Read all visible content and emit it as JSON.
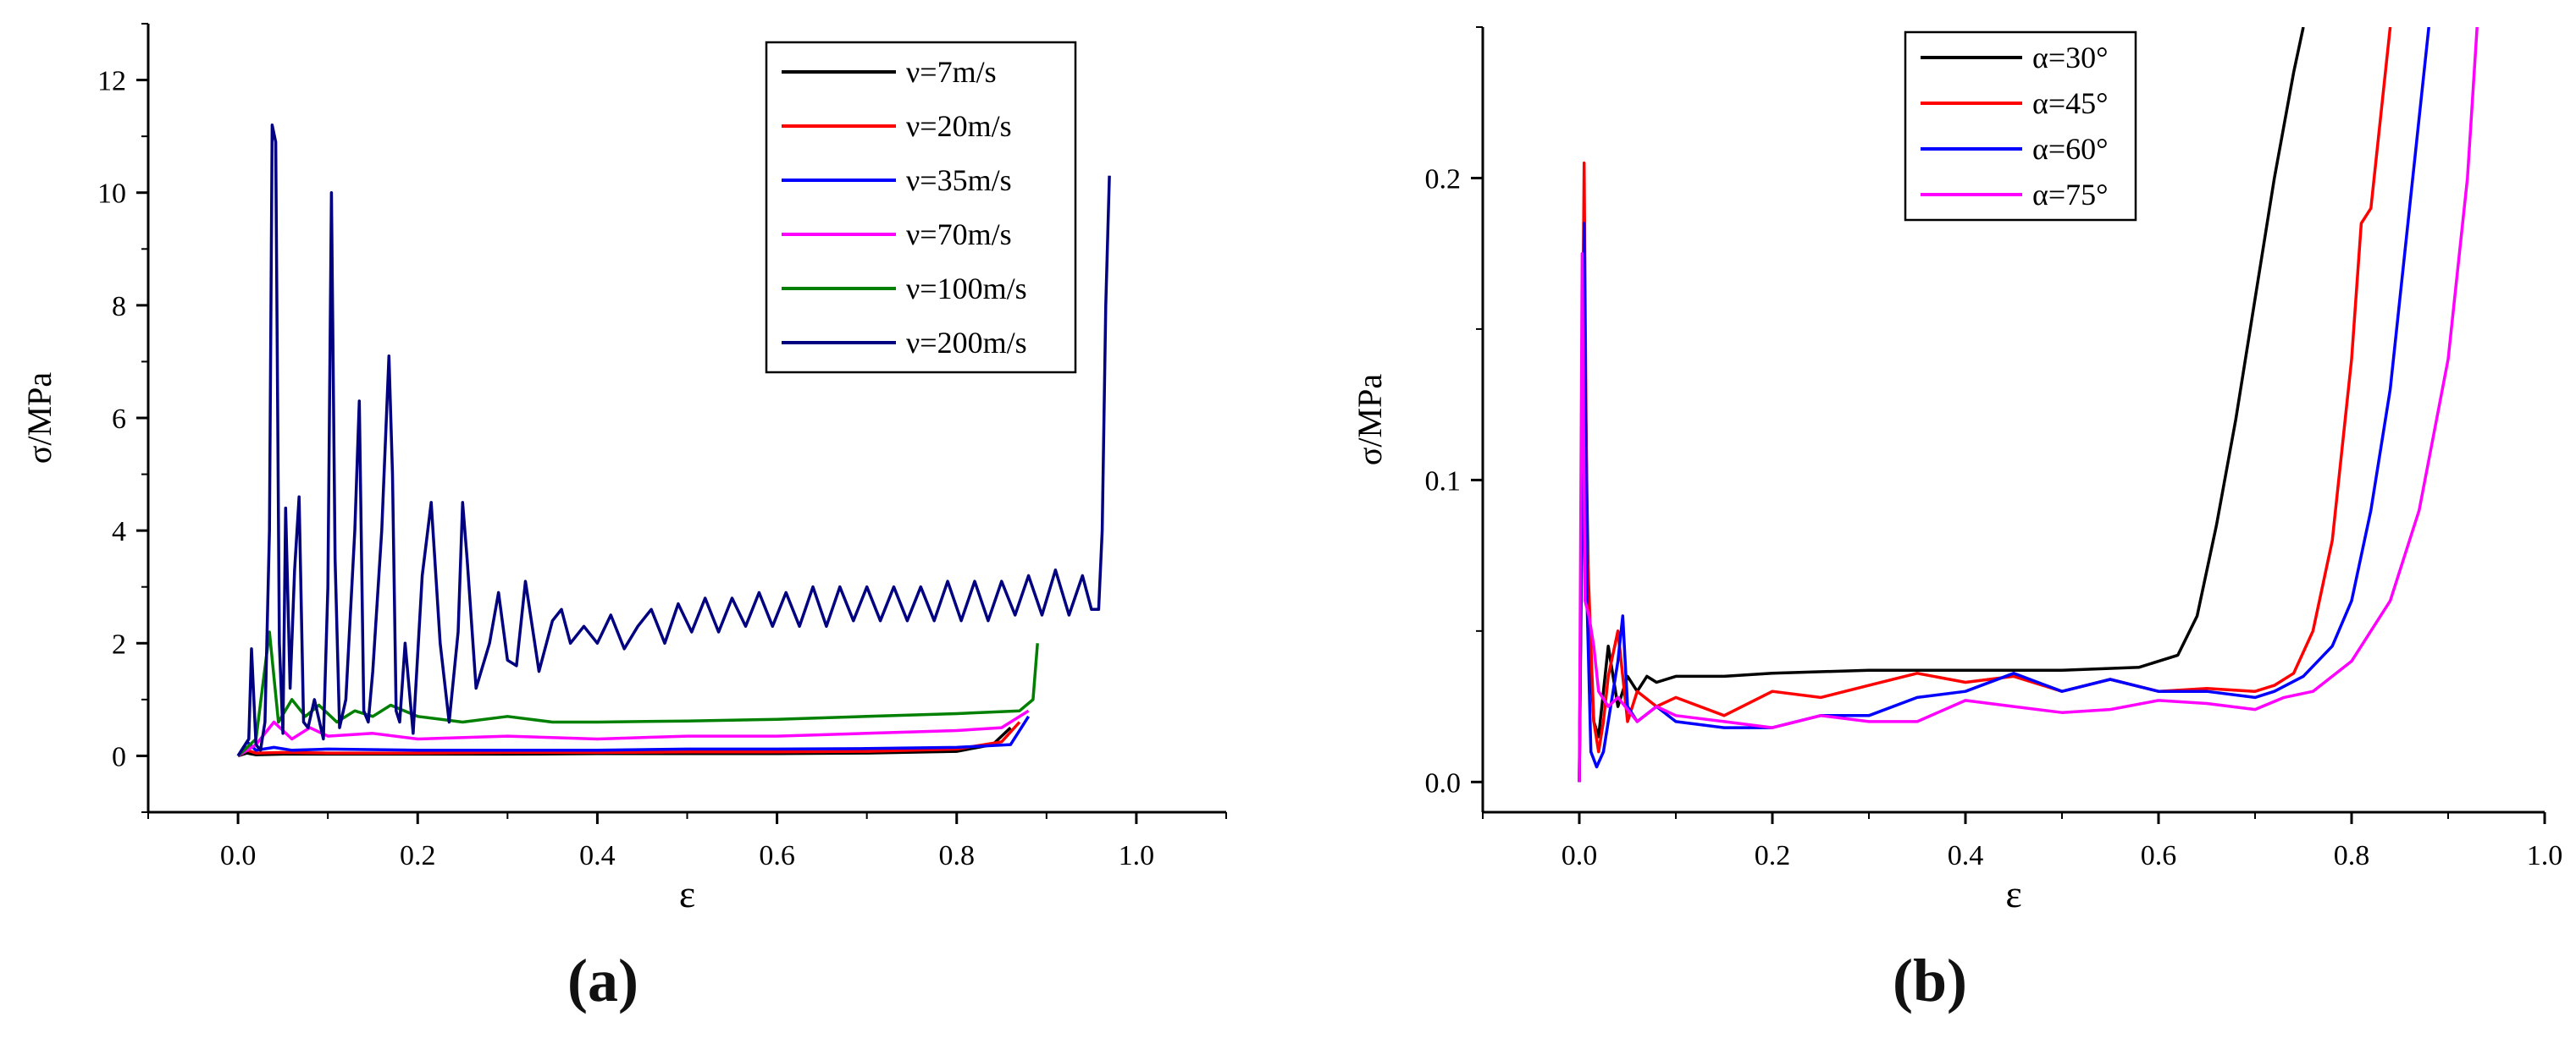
{
  "chart_data": [
    {
      "type": "line",
      "panel_label": "(a)",
      "xlabel": "ε",
      "ylabel": "σ/MPa",
      "xlim": [
        -0.1,
        1.1
      ],
      "ylim": [
        -1,
        13
      ],
      "xticks": [
        0.0,
        0.2,
        0.4,
        0.6,
        0.8,
        1.0
      ],
      "xtick_labels": [
        "0.0",
        "0.2",
        "0.4",
        "0.6",
        "0.8",
        "1.0"
      ],
      "yticks": [
        0,
        2,
        4,
        6,
        8,
        10,
        12
      ],
      "ytick_labels": [
        "0",
        "2",
        "4",
        "6",
        "8",
        "10",
        "12"
      ],
      "legend_position": "top-right",
      "series": [
        {
          "name": "ν=7m/s",
          "color": "#000000",
          "x": [
            0.0,
            0.01,
            0.02,
            0.05,
            0.1,
            0.2,
            0.3,
            0.4,
            0.5,
            0.6,
            0.7,
            0.8,
            0.84,
            0.86
          ],
          "y": [
            0.0,
            0.05,
            0.02,
            0.03,
            0.03,
            0.03,
            0.03,
            0.04,
            0.04,
            0.04,
            0.05,
            0.08,
            0.2,
            0.5
          ]
        },
        {
          "name": "ν=20m/s",
          "color": "#ff0000",
          "x": [
            0.0,
            0.01,
            0.02,
            0.05,
            0.1,
            0.2,
            0.3,
            0.4,
            0.5,
            0.6,
            0.7,
            0.8,
            0.85,
            0.87
          ],
          "y": [
            0.0,
            0.1,
            0.05,
            0.06,
            0.05,
            0.05,
            0.06,
            0.06,
            0.07,
            0.07,
            0.08,
            0.12,
            0.25,
            0.6
          ]
        },
        {
          "name": "ν=35m/s",
          "color": "#0000ff",
          "x": [
            0.0,
            0.01,
            0.02,
            0.04,
            0.06,
            0.1,
            0.2,
            0.3,
            0.4,
            0.5,
            0.6,
            0.7,
            0.8,
            0.86,
            0.88
          ],
          "y": [
            0.0,
            0.25,
            0.1,
            0.15,
            0.1,
            0.12,
            0.1,
            0.1,
            0.1,
            0.12,
            0.12,
            0.13,
            0.15,
            0.2,
            0.7
          ]
        },
        {
          "name": "ν=70m/s",
          "color": "#ff00ff",
          "x": [
            0.0,
            0.02,
            0.04,
            0.06,
            0.08,
            0.1,
            0.15,
            0.2,
            0.3,
            0.4,
            0.5,
            0.6,
            0.7,
            0.8,
            0.85,
            0.88
          ],
          "y": [
            0.0,
            0.2,
            0.6,
            0.3,
            0.5,
            0.35,
            0.4,
            0.3,
            0.35,
            0.3,
            0.35,
            0.35,
            0.4,
            0.45,
            0.5,
            0.8
          ]
        },
        {
          "name": "ν=100m/s",
          "color": "#008000",
          "x": [
            0.0,
            0.02,
            0.035,
            0.045,
            0.06,
            0.075,
            0.09,
            0.11,
            0.13,
            0.15,
            0.17,
            0.2,
            0.25,
            0.3,
            0.35,
            0.4,
            0.5,
            0.6,
            0.7,
            0.8,
            0.87,
            0.885,
            0.89
          ],
          "y": [
            0.0,
            0.3,
            2.2,
            0.6,
            1.0,
            0.7,
            0.9,
            0.6,
            0.8,
            0.7,
            0.9,
            0.7,
            0.6,
            0.7,
            0.6,
            0.6,
            0.62,
            0.65,
            0.7,
            0.75,
            0.8,
            1.0,
            2.0
          ]
        },
        {
          "name": "ν=200m/s",
          "color": "#000080",
          "x": [
            0.0,
            0.012,
            0.015,
            0.02,
            0.025,
            0.03,
            0.035,
            0.038,
            0.042,
            0.046,
            0.05,
            0.053,
            0.058,
            0.063,
            0.068,
            0.073,
            0.078,
            0.085,
            0.095,
            0.1,
            0.104,
            0.108,
            0.113,
            0.12,
            0.13,
            0.135,
            0.14,
            0.145,
            0.15,
            0.16,
            0.168,
            0.172,
            0.176,
            0.18,
            0.186,
            0.195,
            0.205,
            0.215,
            0.225,
            0.235,
            0.245,
            0.25,
            0.255,
            0.265,
            0.28,
            0.29,
            0.3,
            0.31,
            0.32,
            0.335,
            0.35,
            0.36,
            0.37,
            0.385,
            0.4,
            0.415,
            0.43,
            0.445,
            0.46,
            0.475,
            0.49,
            0.505,
            0.52,
            0.535,
            0.55,
            0.565,
            0.58,
            0.595,
            0.61,
            0.625,
            0.64,
            0.655,
            0.67,
            0.685,
            0.7,
            0.715,
            0.73,
            0.745,
            0.76,
            0.775,
            0.79,
            0.805,
            0.82,
            0.835,
            0.85,
            0.865,
            0.88,
            0.895,
            0.91,
            0.925,
            0.94,
            0.95,
            0.958,
            0.962,
            0.966,
            0.97
          ],
          "y": [
            0.0,
            0.3,
            1.9,
            0.2,
            0.1,
            0.6,
            4.0,
            11.2,
            10.9,
            2.0,
            0.4,
            4.4,
            1.2,
            3.3,
            4.6,
            0.6,
            0.5,
            1.0,
            0.3,
            3.0,
            10.0,
            3.5,
            0.5,
            1.0,
            4.0,
            6.3,
            0.8,
            0.6,
            1.5,
            4.0,
            7.1,
            5.0,
            0.8,
            0.6,
            2.0,
            0.4,
            3.2,
            4.5,
            2.0,
            0.6,
            2.2,
            4.5,
            3.5,
            1.2,
            2.0,
            2.9,
            1.7,
            1.6,
            3.1,
            1.5,
            2.4,
            2.6,
            2.0,
            2.3,
            2.0,
            2.5,
            1.9,
            2.3,
            2.6,
            2.0,
            2.7,
            2.2,
            2.8,
            2.2,
            2.8,
            2.3,
            2.9,
            2.3,
            2.9,
            2.3,
            3.0,
            2.3,
            3.0,
            2.4,
            3.0,
            2.4,
            3.0,
            2.4,
            3.0,
            2.4,
            3.1,
            2.4,
            3.1,
            2.4,
            3.1,
            2.5,
            3.2,
            2.5,
            3.3,
            2.5,
            3.2,
            2.6,
            2.6,
            4.0,
            8.0,
            10.3
          ]
        }
      ]
    },
    {
      "type": "line",
      "panel_label": "(b)",
      "xlabel": "ε",
      "ylabel": "σ/MPa",
      "xlim": [
        -0.1,
        1.0
      ],
      "ylim": [
        -0.01,
        0.25
      ],
      "xticks": [
        0.0,
        0.2,
        0.4,
        0.6,
        0.8,
        1.0
      ],
      "xtick_labels": [
        "0.0",
        "0.2",
        "0.4",
        "0.6",
        "0.8",
        "1.0"
      ],
      "yticks": [
        0.0,
        0.1,
        0.2
      ],
      "ytick_labels": [
        "0.0",
        "0.1",
        "0.2"
      ],
      "legend_position": "top-left",
      "series": [
        {
          "name": "α=30°",
          "color": "#000000",
          "x": [
            0.0,
            0.005,
            0.01,
            0.015,
            0.02,
            0.025,
            0.03,
            0.035,
            0.04,
            0.05,
            0.06,
            0.07,
            0.08,
            0.1,
            0.15,
            0.2,
            0.3,
            0.4,
            0.5,
            0.58,
            0.62,
            0.64,
            0.66,
            0.68,
            0.7,
            0.72,
            0.74,
            0.75
          ],
          "y": [
            0.0,
            0.16,
            0.05,
            0.02,
            0.015,
            0.03,
            0.045,
            0.035,
            0.025,
            0.035,
            0.03,
            0.035,
            0.033,
            0.035,
            0.035,
            0.036,
            0.037,
            0.037,
            0.037,
            0.038,
            0.042,
            0.055,
            0.085,
            0.12,
            0.16,
            0.2,
            0.235,
            0.25
          ]
        },
        {
          "name": "α=45°",
          "color": "#ff0000",
          "x": [
            0.0,
            0.005,
            0.008,
            0.015,
            0.02,
            0.025,
            0.03,
            0.04,
            0.05,
            0.06,
            0.08,
            0.1,
            0.15,
            0.2,
            0.25,
            0.3,
            0.35,
            0.4,
            0.45,
            0.5,
            0.55,
            0.6,
            0.65,
            0.7,
            0.72,
            0.74,
            0.76,
            0.78,
            0.8,
            0.81,
            0.82,
            0.83,
            0.84
          ],
          "y": [
            0.0,
            0.205,
            0.08,
            0.02,
            0.01,
            0.02,
            0.035,
            0.05,
            0.02,
            0.03,
            0.025,
            0.028,
            0.022,
            0.03,
            0.028,
            0.032,
            0.036,
            0.033,
            0.035,
            0.03,
            0.034,
            0.03,
            0.031,
            0.03,
            0.032,
            0.036,
            0.05,
            0.08,
            0.14,
            0.185,
            0.19,
            0.22,
            0.25
          ]
        },
        {
          "name": "α=60°",
          "color": "#0000ff",
          "x": [
            0.0,
            0.005,
            0.008,
            0.012,
            0.018,
            0.025,
            0.03,
            0.04,
            0.045,
            0.05,
            0.06,
            0.08,
            0.1,
            0.15,
            0.2,
            0.25,
            0.3,
            0.35,
            0.4,
            0.45,
            0.5,
            0.55,
            0.6,
            0.65,
            0.7,
            0.72,
            0.75,
            0.78,
            0.8,
            0.82,
            0.84,
            0.86,
            0.88
          ],
          "y": [
            0.0,
            0.185,
            0.06,
            0.01,
            0.005,
            0.01,
            0.02,
            0.04,
            0.055,
            0.025,
            0.02,
            0.025,
            0.02,
            0.018,
            0.018,
            0.022,
            0.022,
            0.028,
            0.03,
            0.036,
            0.03,
            0.034,
            0.03,
            0.03,
            0.028,
            0.03,
            0.035,
            0.045,
            0.06,
            0.09,
            0.13,
            0.19,
            0.25
          ]
        },
        {
          "name": "α=75°",
          "color": "#ff00ff",
          "x": [
            0.0,
            0.003,
            0.006,
            0.01,
            0.015,
            0.02,
            0.03,
            0.04,
            0.06,
            0.08,
            0.1,
            0.15,
            0.2,
            0.25,
            0.3,
            0.35,
            0.4,
            0.45,
            0.5,
            0.55,
            0.6,
            0.65,
            0.7,
            0.73,
            0.76,
            0.8,
            0.84,
            0.87,
            0.9,
            0.92,
            0.93
          ],
          "y": [
            0.0,
            0.175,
            0.06,
            0.055,
            0.045,
            0.03,
            0.025,
            0.028,
            0.02,
            0.025,
            0.022,
            0.02,
            0.018,
            0.022,
            0.02,
            0.02,
            0.027,
            0.025,
            0.023,
            0.024,
            0.027,
            0.026,
            0.024,
            0.028,
            0.03,
            0.04,
            0.06,
            0.09,
            0.14,
            0.2,
            0.25
          ]
        }
      ]
    }
  ]
}
